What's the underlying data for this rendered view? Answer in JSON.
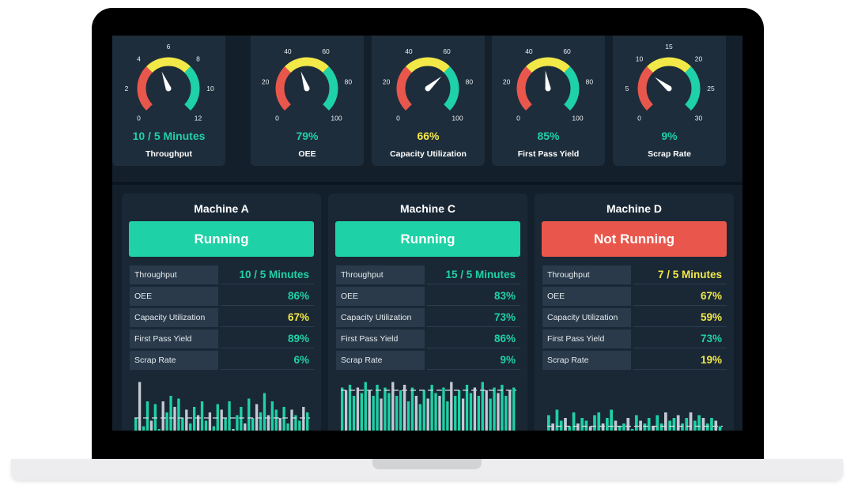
{
  "colors": {
    "green": "#1fd1a6",
    "yellow": "#f2e948",
    "red": "#e9574c",
    "gray": "#c3cad2"
  },
  "gauges": [
    {
      "label": "Throughput",
      "value": "10 / 5 Minutes",
      "color": "green",
      "ticks": [
        "0",
        "2",
        "4",
        "6",
        "8",
        "10",
        "12"
      ],
      "level": 0.42
    },
    {
      "label": "OEE",
      "value": "79%",
      "color": "green",
      "ticks": [
        "0",
        "20",
        "40",
        "60",
        "80",
        "100"
      ],
      "level": 0.43
    },
    {
      "label": "Capacity Utilization",
      "value": "66%",
      "color": "yellow",
      "ticks": [
        "0",
        "20",
        "40",
        "60",
        "80",
        "100"
      ],
      "level": 0.68
    },
    {
      "label": "First Pass Yield",
      "value": "85%",
      "color": "green",
      "ticks": [
        "0",
        "20",
        "40",
        "60",
        "80",
        "100"
      ],
      "level": 0.47
    },
    {
      "label": "Scrap Rate",
      "value": "9%",
      "color": "green",
      "ticks": [
        "0",
        "5",
        "10",
        "15",
        "20",
        "25",
        "30"
      ],
      "level": 0.31
    }
  ],
  "machines": [
    {
      "name": "Machine A",
      "status": "Running",
      "status_color": "green",
      "metrics": [
        {
          "label": "Throughput",
          "value": "10 / 5 Minutes",
          "color": "green"
        },
        {
          "label": "OEE",
          "value": "86%",
          "color": "green"
        },
        {
          "label": "Capacity Utilization",
          "value": "67%",
          "color": "yellow"
        },
        {
          "label": "First Pass Yield",
          "value": "89%",
          "color": "green"
        },
        {
          "label": "Scrap Rate",
          "value": "6%",
          "color": "green"
        }
      ],
      "bars": [
        0.3,
        0.95,
        0.15,
        0.6,
        0.25,
        0.55,
        0.1,
        0.6,
        0.4,
        0.7,
        0.5,
        0.65,
        0.3,
        0.45,
        0.2,
        0.5,
        0.35,
        0.6,
        0.25,
        0.4,
        0.15,
        0.55,
        0.45,
        0.3,
        0.6,
        0.1,
        0.35,
        0.5,
        0.2,
        0.65,
        0.3,
        0.55,
        0.4,
        0.75,
        0.35,
        0.6,
        0.45,
        0.3,
        0.5,
        0.2,
        0.45,
        0.35,
        0.25,
        0.5,
        0.4
      ],
      "threshold": 0.3
    },
    {
      "name": "Machine C",
      "status": "Running",
      "status_color": "green",
      "metrics": [
        {
          "label": "Throughput",
          "value": "15 / 5 Minutes",
          "color": "green"
        },
        {
          "label": "OEE",
          "value": "83%",
          "color": "green"
        },
        {
          "label": "Capacity Utilization",
          "value": "73%",
          "color": "green"
        },
        {
          "label": "First Pass Yield",
          "value": "86%",
          "color": "green"
        },
        {
          "label": "Scrap Rate",
          "value": "9%",
          "color": "green"
        }
      ],
      "bars": [
        0.85,
        0.8,
        0.9,
        0.7,
        0.85,
        0.75,
        0.95,
        0.8,
        0.7,
        0.9,
        0.65,
        0.85,
        0.75,
        0.95,
        0.7,
        0.8,
        0.9,
        0.6,
        0.85,
        0.7,
        0.55,
        0.8,
        0.65,
        0.9,
        0.75,
        0.7,
        0.85,
        0.6,
        0.95,
        0.7,
        0.8,
        0.65,
        0.9,
        0.75,
        0.85,
        0.7,
        0.95,
        0.8,
        0.65,
        0.85,
        0.75,
        0.9,
        0.7,
        0.8,
        0.85
      ],
      "threshold": 0.8
    },
    {
      "name": "Machine D",
      "status": "Not Running",
      "status_color": "red",
      "metrics": [
        {
          "label": "Throughput",
          "value": "7 / 5 Minutes",
          "color": "yellow"
        },
        {
          "label": "OEE",
          "value": "67%",
          "color": "yellow"
        },
        {
          "label": "Capacity Utilization",
          "value": "59%",
          "color": "yellow"
        },
        {
          "label": "First Pass Yield",
          "value": "73%",
          "color": "green"
        },
        {
          "label": "Scrap Rate",
          "value": "19%",
          "color": "yellow"
        }
      ],
      "bars": [
        0.35,
        0.2,
        0.45,
        0.25,
        0.3,
        0.15,
        0.4,
        0.2,
        0.3,
        0.25,
        0.15,
        0.35,
        0.4,
        0.2,
        0.3,
        0.45,
        0.25,
        0.15,
        0.2,
        0.3,
        0.1,
        0.35,
        0.25,
        0.2,
        0.3,
        0.15,
        0.35,
        0.2,
        0.4,
        0.25,
        0.3,
        0.35,
        0.2,
        0.3,
        0.4,
        0.25,
        0.35,
        0.3,
        0.2,
        0.3,
        0.25,
        0.15
      ],
      "threshold": 0.15
    }
  ]
}
